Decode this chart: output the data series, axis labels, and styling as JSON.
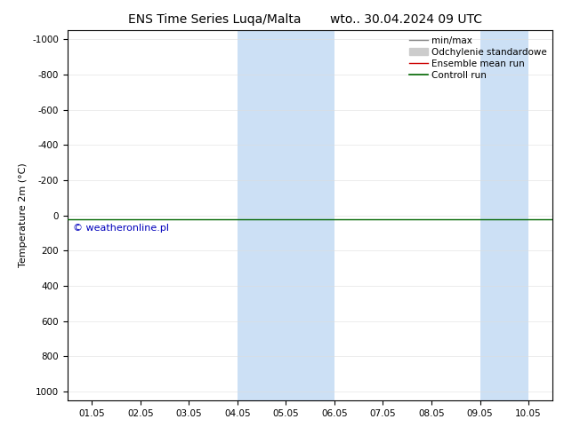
{
  "title_left": "ENS Time Series Luqa/Malta",
  "title_right": "wto.. 30.04.2024 09 UTC",
  "ylabel": "Temperature 2m (°C)",
  "yticks": [
    -1000,
    -800,
    -600,
    -400,
    -200,
    0,
    200,
    400,
    600,
    800,
    1000
  ],
  "ylim_top": -1050,
  "ylim_bottom": 1050,
  "xtick_labels": [
    "01.05",
    "02.05",
    "03.05",
    "04.05",
    "05.05",
    "06.05",
    "07.05",
    "08.05",
    "09.05",
    "10.05"
  ],
  "x_positions": [
    0,
    1,
    2,
    3,
    4,
    5,
    6,
    7,
    8,
    9
  ],
  "xlim": [
    -0.5,
    9.5
  ],
  "background_color": "#ffffff",
  "plot_bg_color": "#ffffff",
  "shaded_bands": [
    {
      "xmin": 3.0,
      "xmax": 5.0,
      "color": "#cce0f5"
    },
    {
      "xmin": 8.0,
      "xmax": 9.0,
      "color": "#cce0f5"
    }
  ],
  "control_run_y": 20.0,
  "control_run_color": "#006600",
  "ensemble_mean_color": "#cc0000",
  "minmax_color": "#888888",
  "std_color": "#cccccc",
  "watermark_text": "© weatheronline.pl",
  "watermark_color": "#0000bb",
  "watermark_fontsize": 8,
  "legend_entries": [
    {
      "label": "min/max",
      "color": "#888888",
      "lw": 1.0
    },
    {
      "label": "Odchylenie standardowe",
      "color": "#cccccc",
      "lw": 5
    },
    {
      "label": "Ensemble mean run",
      "color": "#cc0000",
      "lw": 1.0
    },
    {
      "label": "Controll run",
      "color": "#006600",
      "lw": 1.2
    }
  ],
  "title_fontsize": 10,
  "axis_fontsize": 8,
  "legend_fontsize": 7.5,
  "tick_fontsize": 7.5
}
